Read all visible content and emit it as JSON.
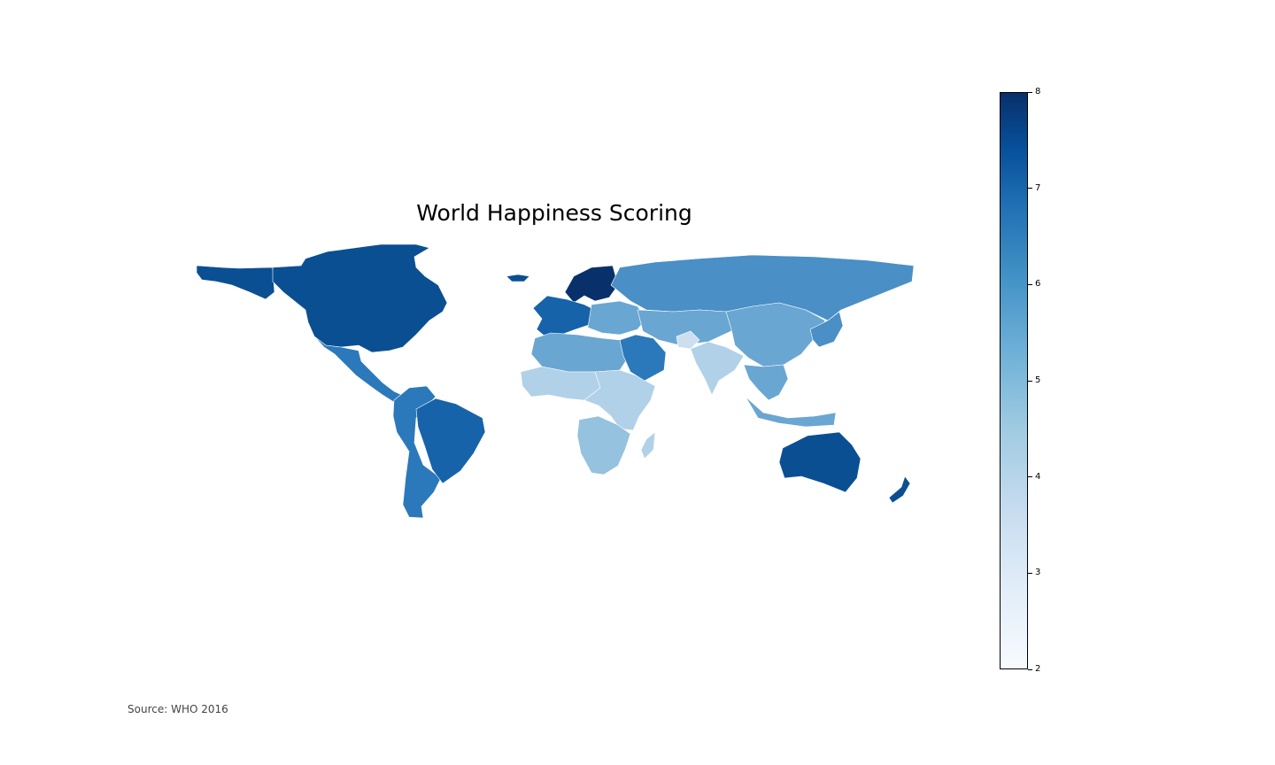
{
  "title": "World Happiness Scoring",
  "source": "Source: WHO 2016",
  "colorbar": {
    "min": 2,
    "max": 8,
    "ticks": [
      "2",
      "3",
      "4",
      "5",
      "6",
      "7",
      "8"
    ],
    "colormap": "Blues"
  },
  "colors": {
    "c8": "#08306b",
    "c7": "#0b4f93",
    "c65": "#1763aa",
    "c6": "#2b79ba",
    "c55": "#4a8fc6",
    "c5": "#6aa6d2",
    "c45": "#94c2df",
    "c4": "#b0d1e8",
    "c3": "#cddfef"
  },
  "regions": [
    {
      "name": "canada-usa",
      "score": 7.3
    },
    {
      "name": "alaska",
      "score": 7.1
    },
    {
      "name": "greenland",
      "score": 7.4
    },
    {
      "name": "mexico-central-america",
      "score": 6.5
    },
    {
      "name": "south-america",
      "score": 6.4
    },
    {
      "name": "brazil",
      "score": 6.9
    },
    {
      "name": "nordics",
      "score": 7.5
    },
    {
      "name": "western-europe",
      "score": 6.9
    },
    {
      "name": "eastern-europe",
      "score": 5.6
    },
    {
      "name": "russia",
      "score": 5.9
    },
    {
      "name": "north-africa",
      "score": 5.2
    },
    {
      "name": "west-africa",
      "score": 4.4
    },
    {
      "name": "east-africa",
      "score": 4.3
    },
    {
      "name": "southern-africa",
      "score": 4.6
    },
    {
      "name": "middle-east",
      "score": 6.4
    },
    {
      "name": "central-asia",
      "score": 5.4
    },
    {
      "name": "afghanistan",
      "score": 3.4
    },
    {
      "name": "south-asia",
      "score": 4.4
    },
    {
      "name": "china",
      "score": 5.2
    },
    {
      "name": "japan-korea",
      "score": 5.9
    },
    {
      "name": "southeast-asia",
      "score": 5.6
    },
    {
      "name": "indonesia",
      "score": 5.3
    },
    {
      "name": "australia",
      "score": 7.3
    },
    {
      "name": "new-zealand",
      "score": 7.3
    }
  ]
}
